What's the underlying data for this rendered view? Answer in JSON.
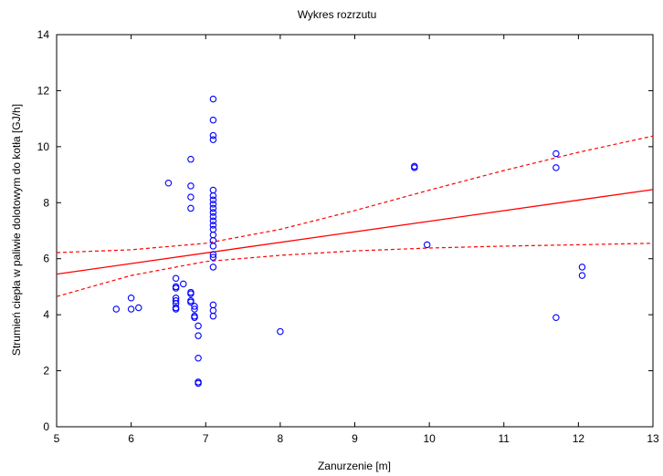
{
  "chart_data": {
    "type": "scatter",
    "title": "Wykres rozrzutu",
    "xlabel": "Zanurzenie [m]",
    "ylabel": "Strumień ciepła w paliwie dolotowym do kotła [GJ/h]",
    "xlim": [
      5,
      13
    ],
    "ylim": [
      0,
      14
    ],
    "xticks": [
      5,
      6,
      7,
      8,
      9,
      10,
      11,
      12,
      13
    ],
    "yticks": [
      0,
      2,
      4,
      6,
      8,
      10,
      12,
      14
    ],
    "grid": false,
    "marker_color": "#0000ff",
    "fit_color": "#ff0000",
    "points": [
      {
        "x": 5.8,
        "y": 4.2
      },
      {
        "x": 6.0,
        "y": 4.6
      },
      {
        "x": 6.0,
        "y": 4.2
      },
      {
        "x": 6.1,
        "y": 4.25
      },
      {
        "x": 6.5,
        "y": 8.7
      },
      {
        "x": 6.6,
        "y": 5.3
      },
      {
        "x": 6.6,
        "y": 5.0
      },
      {
        "x": 6.6,
        "y": 4.95
      },
      {
        "x": 6.6,
        "y": 4.6
      },
      {
        "x": 6.6,
        "y": 4.5
      },
      {
        "x": 6.6,
        "y": 4.4
      },
      {
        "x": 6.6,
        "y": 4.25
      },
      {
        "x": 6.6,
        "y": 4.2
      },
      {
        "x": 6.7,
        "y": 5.1
      },
      {
        "x": 6.8,
        "y": 9.55
      },
      {
        "x": 6.8,
        "y": 8.6
      },
      {
        "x": 6.8,
        "y": 8.2
      },
      {
        "x": 6.8,
        "y": 7.8
      },
      {
        "x": 6.8,
        "y": 4.8
      },
      {
        "x": 6.8,
        "y": 4.75
      },
      {
        "x": 6.8,
        "y": 4.5
      },
      {
        "x": 6.8,
        "y": 4.45
      },
      {
        "x": 6.85,
        "y": 4.3
      },
      {
        "x": 6.85,
        "y": 4.2
      },
      {
        "x": 6.85,
        "y": 3.95
      },
      {
        "x": 6.85,
        "y": 3.9
      },
      {
        "x": 6.9,
        "y": 3.6
      },
      {
        "x": 6.9,
        "y": 3.25
      },
      {
        "x": 6.9,
        "y": 2.45
      },
      {
        "x": 6.9,
        "y": 1.6
      },
      {
        "x": 6.9,
        "y": 1.55
      },
      {
        "x": 7.1,
        "y": 11.7
      },
      {
        "x": 7.1,
        "y": 10.95
      },
      {
        "x": 7.1,
        "y": 10.4
      },
      {
        "x": 7.1,
        "y": 10.25
      },
      {
        "x": 7.1,
        "y": 8.45
      },
      {
        "x": 7.1,
        "y": 8.25
      },
      {
        "x": 7.1,
        "y": 8.1
      },
      {
        "x": 7.1,
        "y": 7.95
      },
      {
        "x": 7.1,
        "y": 7.8
      },
      {
        "x": 7.1,
        "y": 7.65
      },
      {
        "x": 7.1,
        "y": 7.5
      },
      {
        "x": 7.1,
        "y": 7.35
      },
      {
        "x": 7.1,
        "y": 7.2
      },
      {
        "x": 7.1,
        "y": 7.05
      },
      {
        "x": 7.1,
        "y": 6.85
      },
      {
        "x": 7.1,
        "y": 6.65
      },
      {
        "x": 7.1,
        "y": 6.45
      },
      {
        "x": 7.1,
        "y": 6.15
      },
      {
        "x": 7.1,
        "y": 6.05
      },
      {
        "x": 7.1,
        "y": 5.7
      },
      {
        "x": 7.1,
        "y": 4.35
      },
      {
        "x": 7.1,
        "y": 4.15
      },
      {
        "x": 7.1,
        "y": 3.95
      },
      {
        "x": 8.0,
        "y": 3.4
      },
      {
        "x": 9.8,
        "y": 9.3
      },
      {
        "x": 9.8,
        "y": 9.25
      },
      {
        "x": 9.97,
        "y": 6.5
      },
      {
        "x": 11.7,
        "y": 9.75
      },
      {
        "x": 11.7,
        "y": 9.25
      },
      {
        "x": 11.7,
        "y": 3.9
      },
      {
        "x": 12.05,
        "y": 5.7
      },
      {
        "x": 12.05,
        "y": 5.4
      }
    ],
    "fit": {
      "x": [
        5,
        13
      ],
      "y": [
        5.45,
        8.47
      ]
    },
    "ci_upper": [
      {
        "x": 5,
        "y": 6.22
      },
      {
        "x": 6,
        "y": 6.32
      },
      {
        "x": 7,
        "y": 6.55
      },
      {
        "x": 8,
        "y": 7.05
      },
      {
        "x": 9,
        "y": 7.72
      },
      {
        "x": 10,
        "y": 8.45
      },
      {
        "x": 11,
        "y": 9.15
      },
      {
        "x": 12,
        "y": 9.8
      },
      {
        "x": 13,
        "y": 10.38
      }
    ],
    "ci_lower": [
      {
        "x": 5,
        "y": 4.65
      },
      {
        "x": 6,
        "y": 5.4
      },
      {
        "x": 7,
        "y": 5.9
      },
      {
        "x": 8,
        "y": 6.12
      },
      {
        "x": 9,
        "y": 6.28
      },
      {
        "x": 10,
        "y": 6.38
      },
      {
        "x": 11,
        "y": 6.45
      },
      {
        "x": 12,
        "y": 6.5
      },
      {
        "x": 13,
        "y": 6.55
      }
    ]
  }
}
